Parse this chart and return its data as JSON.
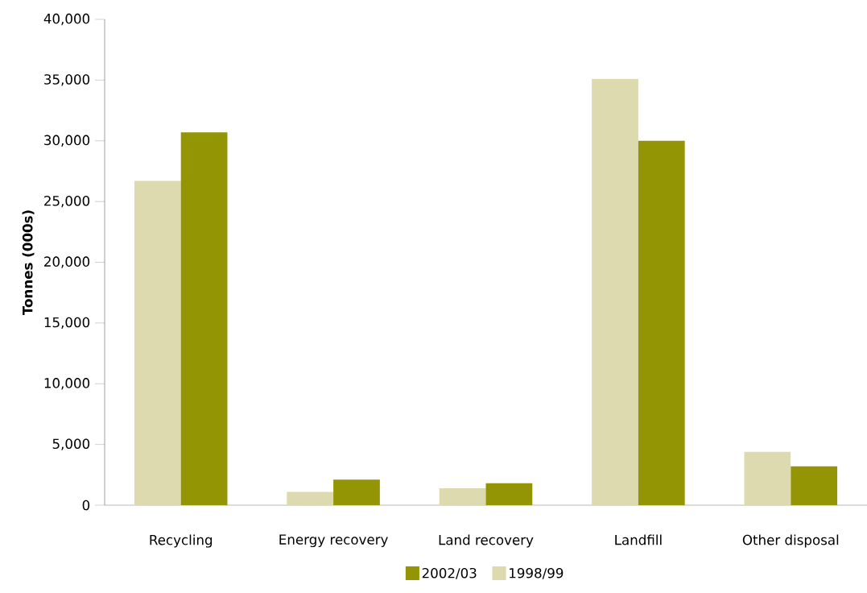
{
  "chart_data": {
    "type": "bar",
    "ylabel": "Tonnes (000s)",
    "categories": [
      "Recycling",
      "Energy recovery",
      "Land recovery",
      "Landfill",
      "Other disposal"
    ],
    "series": [
      {
        "name": "1998/99",
        "color": "#dcdaae",
        "values": [
          26700,
          1100,
          1400,
          35100,
          4400
        ]
      },
      {
        "name": "2002/03",
        "color": "#949505",
        "values": [
          30700,
          2100,
          1800,
          30000,
          3200
        ]
      }
    ],
    "ylim": [
      0,
      40000
    ],
    "yticks": [
      0,
      {
        "value": 5000,
        "label": "5,000"
      },
      {
        "value": 10000,
        "label": "10,000"
      },
      {
        "value": 15000,
        "label": "15,000"
      },
      {
        "value": 20000,
        "label": "20,000"
      },
      {
        "value": 25000,
        "label": "25,000"
      },
      {
        "value": 30000,
        "label": "30,000"
      },
      {
        "value": 35000,
        "label": "35,000"
      },
      {
        "value": 40000,
        "label": "40,000"
      }
    ],
    "grid": false,
    "legend": "bottom"
  }
}
